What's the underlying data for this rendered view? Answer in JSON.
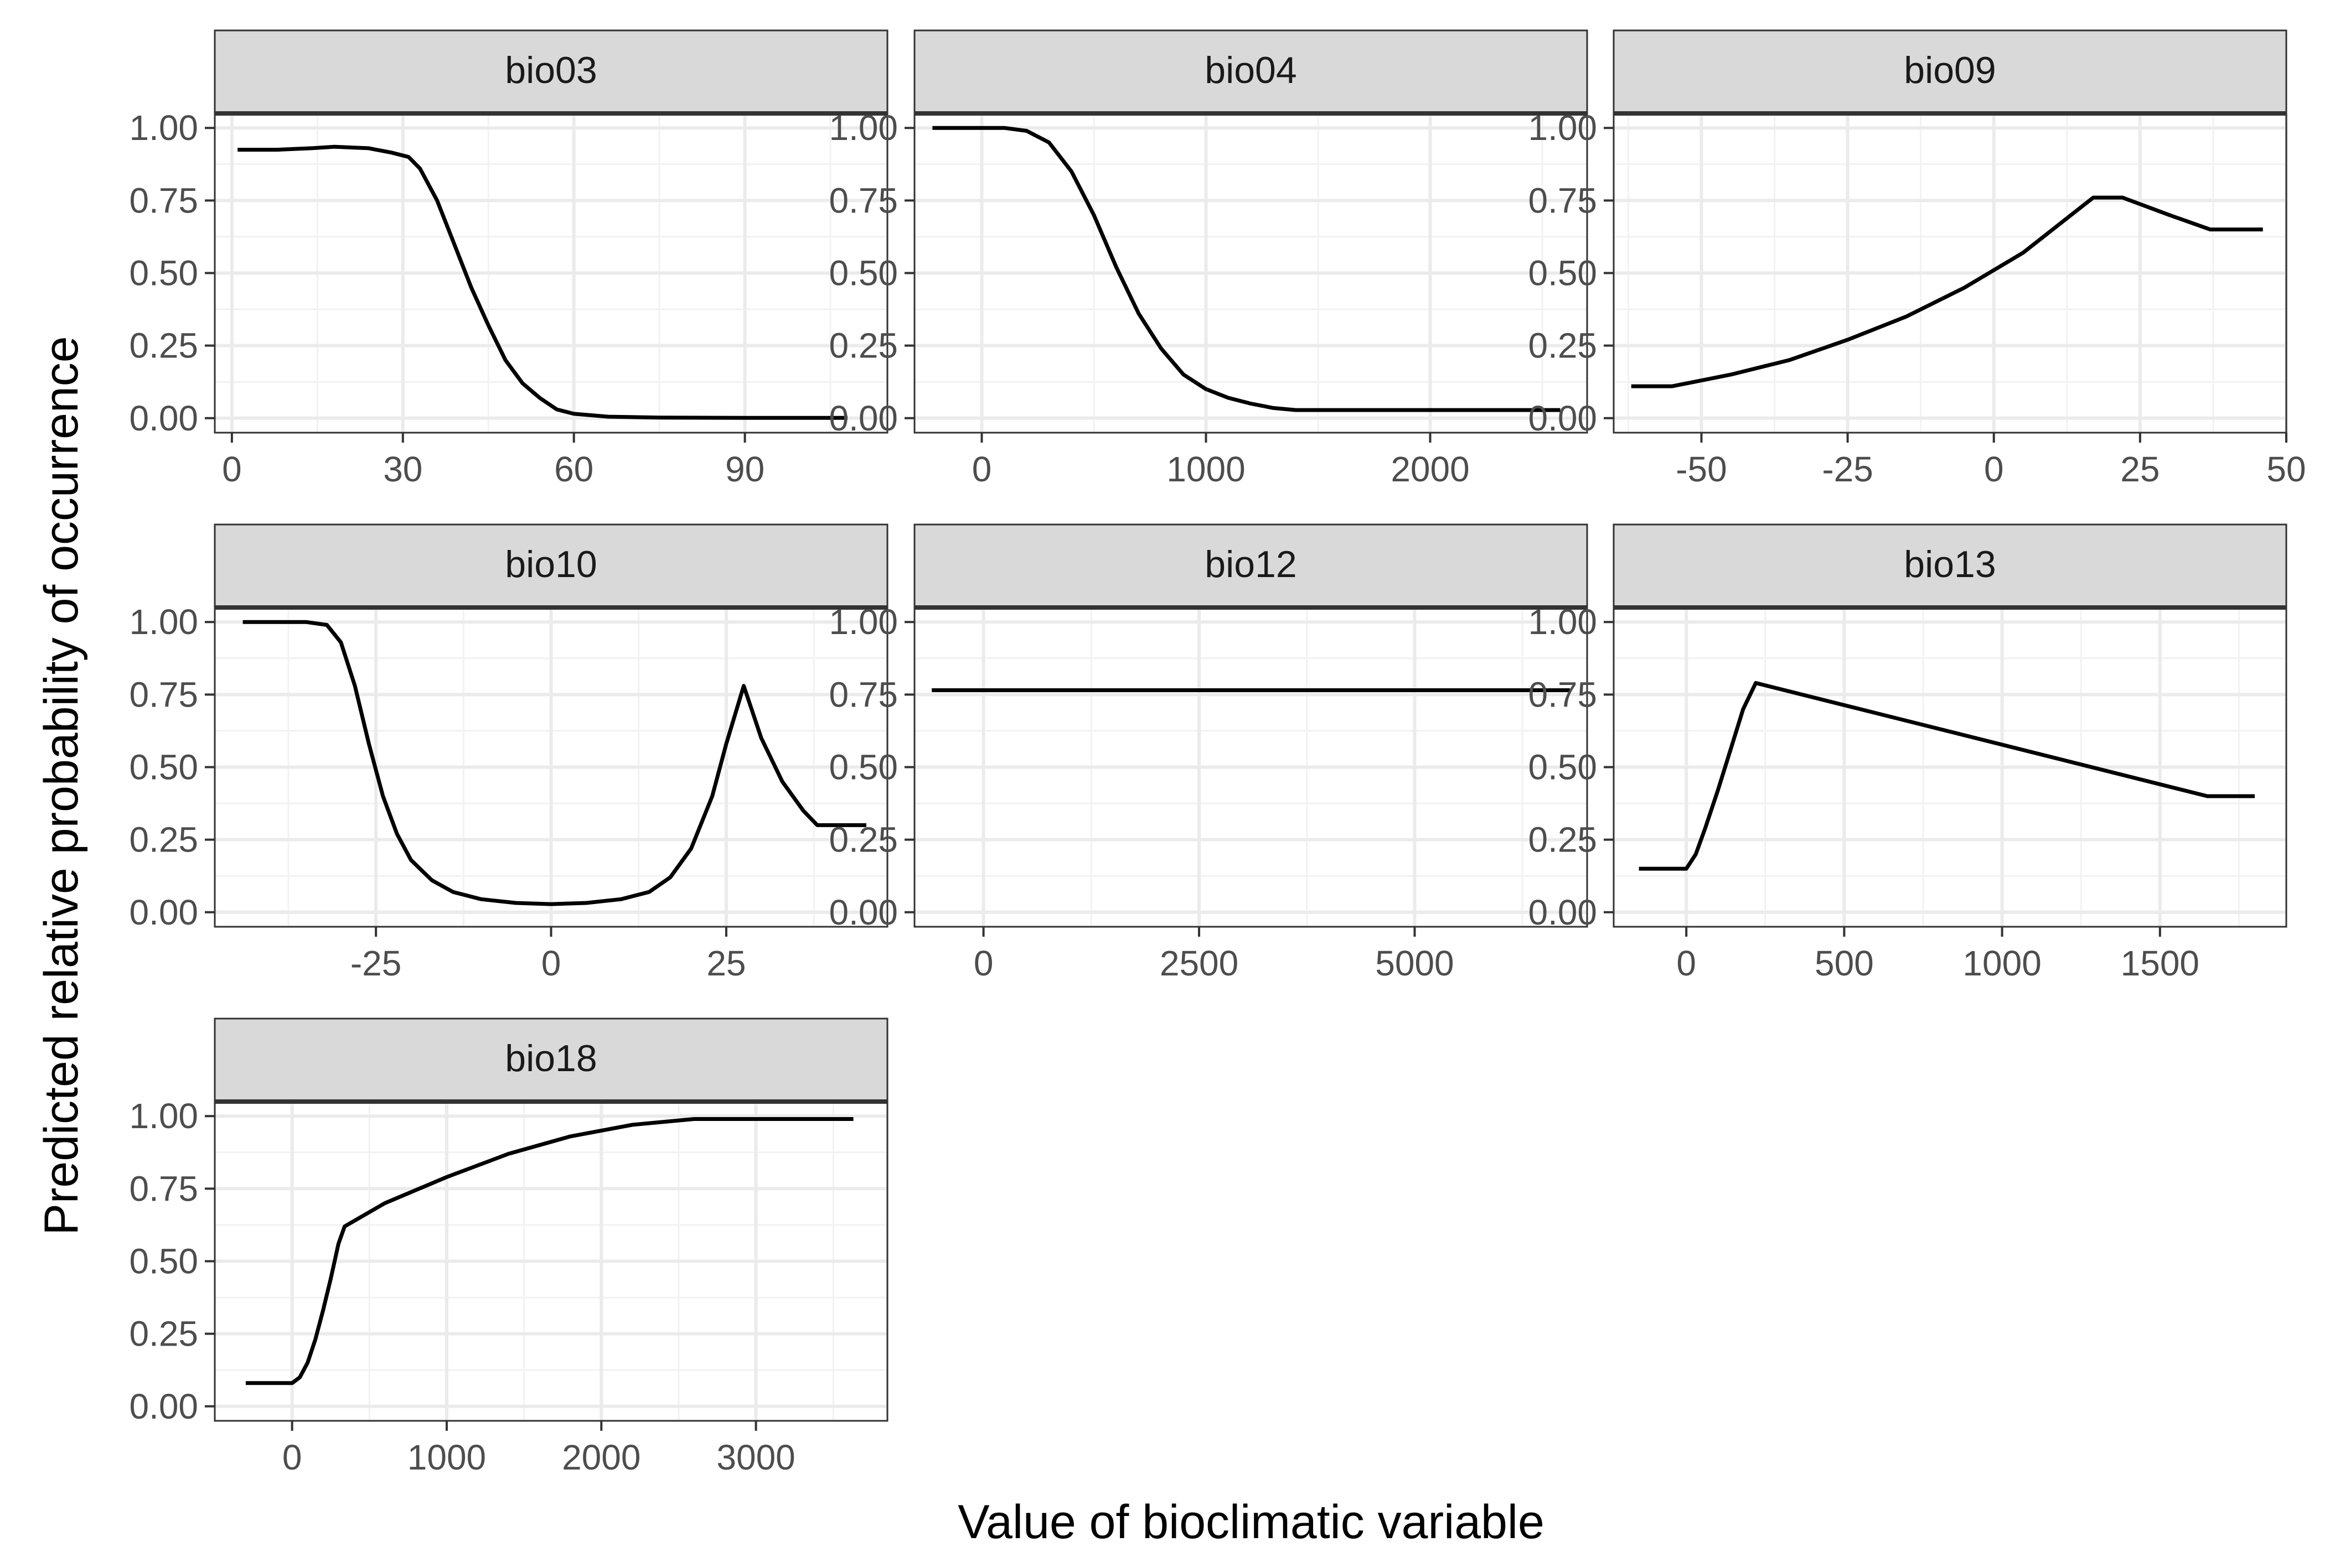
{
  "figure": {
    "xlabel": "Value of bioclimatic variable",
    "ylabel": "Predicted relative probability of occurrence"
  },
  "colors": {
    "strip_fill": "#d9d9d9",
    "strip_border": "#333333",
    "grid_major": "#ebebeb",
    "grid_minor": "#f2f2f2",
    "line": "#000000",
    "tick_text": "#4d4d4d"
  },
  "chart_data": [
    {
      "type": "line",
      "title": "bio03",
      "xlim": [
        -3,
        115
      ],
      "ylim": [
        -0.05,
        1.05
      ],
      "xticks": [
        0,
        30,
        60,
        90
      ],
      "xtick_labels": [
        "0",
        "30",
        "60",
        "90"
      ],
      "yticks": [
        0,
        0.25,
        0.5,
        0.75,
        1
      ],
      "ytick_labels": [
        "0.00",
        "0.25",
        "0.50",
        "0.75",
        "1.00"
      ],
      "x": [
        1,
        8,
        14,
        18,
        24,
        28,
        31,
        33,
        36,
        39,
        42,
        45,
        48,
        51,
        54,
        57,
        60,
        66,
        75,
        90,
        108
      ],
      "y": [
        0.925,
        0.925,
        0.93,
        0.935,
        0.93,
        0.915,
        0.9,
        0.86,
        0.75,
        0.6,
        0.45,
        0.32,
        0.2,
        0.12,
        0.07,
        0.03,
        0.015,
        0.005,
        0.002,
        0.001,
        0.001
      ]
    },
    {
      "type": "line",
      "title": "bio04",
      "xlim": [
        -300,
        2700
      ],
      "ylim": [
        -0.05,
        1.05
      ],
      "xticks": [
        0,
        1000,
        2000
      ],
      "xtick_labels": [
        "0",
        "1000",
        "2000"
      ],
      "yticks": [
        0,
        0.25,
        0.5,
        0.75,
        1
      ],
      "ytick_labels": [
        "0.00",
        "0.25",
        "0.50",
        "0.75",
        "1.00"
      ],
      "x": [
        -220,
        100,
        200,
        300,
        400,
        500,
        600,
        700,
        800,
        900,
        1000,
        1100,
        1200,
        1300,
        1400,
        1500,
        2000,
        2580
      ],
      "y": [
        1.0,
        1.0,
        0.99,
        0.95,
        0.85,
        0.7,
        0.52,
        0.36,
        0.24,
        0.15,
        0.1,
        0.07,
        0.05,
        0.035,
        0.028,
        0.028,
        0.028,
        0.028
      ]
    },
    {
      "type": "line",
      "title": "bio09",
      "xlim": [
        -65,
        50
      ],
      "ylim": [
        -0.05,
        1.05
      ],
      "xticks": [
        -50,
        -25,
        0,
        25,
        50
      ],
      "xtick_labels": [
        "-50",
        "-25",
        "0",
        "25",
        "50"
      ],
      "yticks": [
        0,
        0.25,
        0.5,
        0.75,
        1
      ],
      "ytick_labels": [
        "0.00",
        "0.25",
        "0.50",
        "0.75",
        "1.00"
      ],
      "x": [
        -62,
        -55,
        -45,
        -35,
        -25,
        -15,
        -5,
        5,
        17,
        22,
        30,
        37,
        46
      ],
      "y": [
        0.11,
        0.11,
        0.15,
        0.2,
        0.27,
        0.35,
        0.45,
        0.57,
        0.76,
        0.76,
        0.7,
        0.65,
        0.65
      ]
    },
    {
      "type": "line",
      "title": "bio10",
      "xlim": [
        -48,
        48
      ],
      "ylim": [
        -0.05,
        1.05
      ],
      "xticks": [
        -25,
        0,
        25
      ],
      "xtick_labels": [
        "-25",
        "0",
        "25"
      ],
      "yticks": [
        0,
        0.25,
        0.5,
        0.75,
        1
      ],
      "ytick_labels": [
        "0.00",
        "0.25",
        "0.50",
        "0.75",
        "1.00"
      ],
      "x": [
        -44,
        -35,
        -32,
        -30,
        -28,
        -26,
        -24,
        -22,
        -20,
        -17,
        -14,
        -10,
        -5,
        0,
        5,
        10,
        14,
        17,
        20,
        23,
        25,
        27.5,
        30,
        33,
        36,
        38,
        45
      ],
      "y": [
        1.0,
        1.0,
        0.99,
        0.93,
        0.78,
        0.58,
        0.4,
        0.27,
        0.18,
        0.11,
        0.07,
        0.045,
        0.032,
        0.028,
        0.032,
        0.045,
        0.07,
        0.12,
        0.22,
        0.4,
        0.58,
        0.78,
        0.6,
        0.45,
        0.35,
        0.3,
        0.3
      ]
    },
    {
      "type": "line",
      "title": "bio12",
      "xlim": [
        -800,
        7000
      ],
      "ylim": [
        -0.05,
        1.05
      ],
      "xticks": [
        0,
        2500,
        5000
      ],
      "xtick_labels": [
        "0",
        "2500",
        "5000"
      ],
      "yticks": [
        0,
        0.25,
        0.5,
        0.75,
        1
      ],
      "ytick_labels": [
        "0.00",
        "0.25",
        "0.50",
        "0.75",
        "1.00"
      ],
      "x": [
        -600,
        6800
      ],
      "y": [
        0.765,
        0.765
      ]
    },
    {
      "type": "line",
      "title": "bio13",
      "xlim": [
        -230,
        1900
      ],
      "ylim": [
        -0.05,
        1.05
      ],
      "xticks": [
        0,
        500,
        1000,
        1500
      ],
      "xtick_labels": [
        "0",
        "500",
        "1000",
        "1500"
      ],
      "yticks": [
        0,
        0.25,
        0.5,
        0.75,
        1
      ],
      "ytick_labels": [
        "0.00",
        "0.25",
        "0.50",
        "0.75",
        "1.00"
      ],
      "x": [
        -150,
        0,
        30,
        60,
        100,
        140,
        180,
        220,
        1650,
        1800
      ],
      "y": [
        0.15,
        0.15,
        0.2,
        0.29,
        0.42,
        0.56,
        0.7,
        0.79,
        0.4,
        0.4
      ]
    },
    {
      "type": "line",
      "title": "bio18",
      "xlim": [
        -500,
        3850
      ],
      "ylim": [
        -0.05,
        1.05
      ],
      "xticks": [
        0,
        1000,
        2000,
        3000
      ],
      "xtick_labels": [
        "0",
        "1000",
        "2000",
        "3000"
      ],
      "yticks": [
        0,
        0.25,
        0.5,
        0.75,
        1
      ],
      "ytick_labels": [
        "0.00",
        "0.25",
        "0.50",
        "0.75",
        "1.00"
      ],
      "x": [
        -300,
        0,
        50,
        100,
        150,
        200,
        250,
        300,
        340,
        600,
        1000,
        1400,
        1800,
        2200,
        2600,
        3000,
        3630
      ],
      "y": [
        0.08,
        0.08,
        0.1,
        0.15,
        0.23,
        0.33,
        0.44,
        0.56,
        0.62,
        0.7,
        0.79,
        0.87,
        0.93,
        0.97,
        0.99,
        0.99,
        0.99
      ]
    }
  ]
}
